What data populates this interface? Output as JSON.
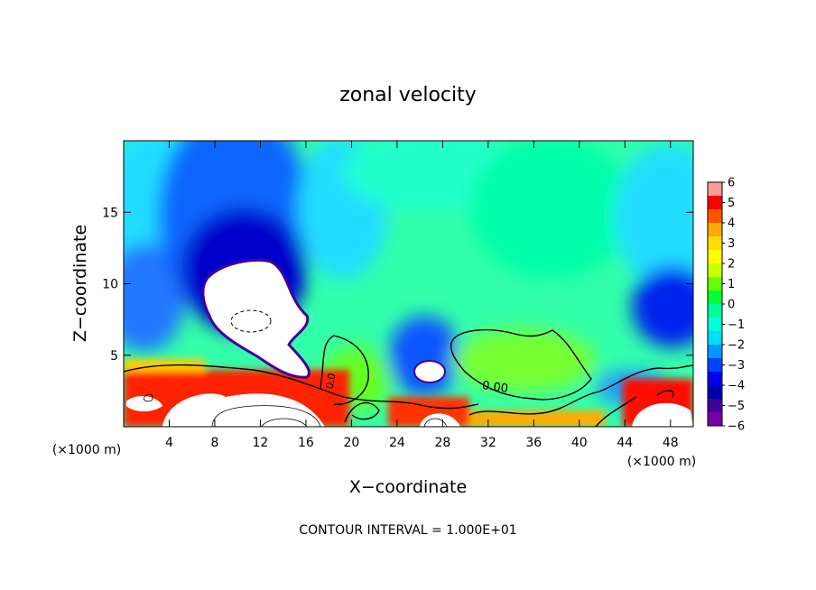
{
  "chart_data": {
    "type": "heatmap",
    "title": "zonal velocity",
    "xlabel": "X−coordinate",
    "ylabel": "Z−coordinate",
    "x_unit_left": "(×1000 m)",
    "x_unit_right": "(×1000 m)",
    "footer": "CONTOUR INTERVAL = 1.000E+01",
    "contour_label": "0.00",
    "contour_label_small": "0.0",
    "xlim": [
      0,
      50
    ],
    "ylim": [
      0,
      20
    ],
    "x_ticks": [
      4,
      8,
      12,
      16,
      20,
      24,
      28,
      32,
      36,
      40,
      44,
      48
    ],
    "y_ticks": [
      5,
      10,
      15
    ],
    "colorbar": {
      "min": -6,
      "max": 6,
      "ticks": [
        6,
        5,
        4,
        3,
        2,
        1,
        0,
        -1,
        -2,
        -3,
        -4,
        -5,
        -6
      ],
      "colors": [
        "#ff9a9a",
        "#ff0000",
        "#ff5500",
        "#ffaa00",
        "#ffdd00",
        "#ffff00",
        "#ccff00",
        "#66ff00",
        "#00ff33",
        "#00ff99",
        "#00ffdd",
        "#00ddff",
        "#0099ff",
        "#0044ff",
        "#0000ee",
        "#0000aa",
        "#440099",
        "#7700aa"
      ]
    }
  }
}
